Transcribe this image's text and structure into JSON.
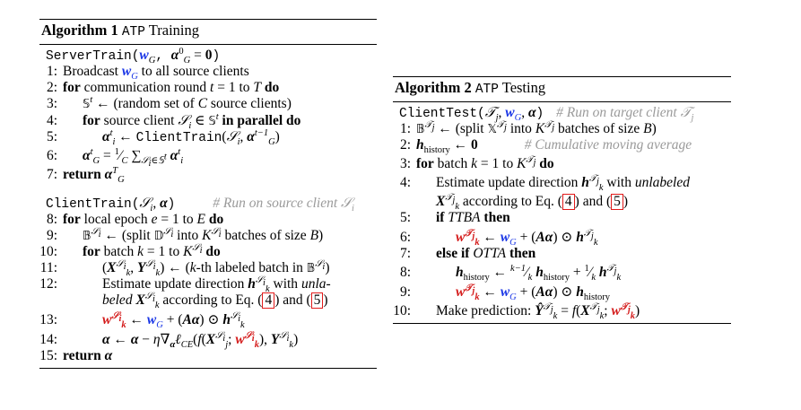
{
  "algo1": {
    "label": "Algorithm 1",
    "name": "ATP",
    "name_suffix": "Training",
    "server_header": "ServerTrain(w_G, α_G^0 = 0)",
    "server_lines": [
      {
        "n": "1:",
        "t": "Broadcast w_G to all source clients"
      },
      {
        "n": "2:",
        "t": "for communication round t = 1 to T do"
      },
      {
        "n": "3:",
        "t": "𝕊^t ← (random set of C source clients)"
      },
      {
        "n": "4:",
        "t": "for source client S_i ∈ 𝕊^t in parallel do"
      },
      {
        "n": "5:",
        "t": "α_i^t ← ClientTrain(S_i, α_G^{t−1})"
      },
      {
        "n": "6:",
        "t": "α_G^t = (1/C) Σ_{S_i∈𝕊^t} α_i^t"
      },
      {
        "n": "7:",
        "t": "return α_G^T"
      }
    ],
    "client_header": "ClientTrain(S_i, α)",
    "client_comment": "# Run on source client S_i",
    "client_lines": [
      {
        "n": "8:",
        "t": "for local epoch e = 1 to E do"
      },
      {
        "n": "9:",
        "t": "𝔹^{S_i} ← (split 𝔻^{S_i} into K^{S_i} batches of size B)"
      },
      {
        "n": "10:",
        "t": "for batch k = 1 to K^{S_i} do"
      },
      {
        "n": "11:",
        "t": "(X_k^{S_i}, Y_k^{S_i}) ← (k-th labeled batch in 𝔹^{S_i})"
      },
      {
        "n": "12:",
        "t": "Estimate update direction h_k^{S_i} with unlabeled X_k^{S_i} according to Eq. (4) and (5)"
      },
      {
        "n": "13:",
        "t": "w_k^{S_i} ← w_G + (Aα) ⊙ h_k^{S_i}"
      },
      {
        "n": "14:",
        "t": "α ← α − η∇_α ℓ_CE(f(X_j^{S_i}; w_k^{S_i}), Y_k^{S_i})"
      },
      {
        "n": "15:",
        "t": "return α"
      }
    ]
  },
  "algo2": {
    "label": "Algorithm 2",
    "name": "ATP",
    "name_suffix": "Testing",
    "header": "ClientTest(T_j, w_G, α)",
    "comment": "# Run on target client T_j",
    "lines": [
      {
        "n": "1:",
        "t": "𝔹^{T_j} ← (split 𝕏^{T_j} into K^{T_j} batches of size B)"
      },
      {
        "n": "2:",
        "t": "h_history ← 0",
        "comment": "# Cumulative moving average"
      },
      {
        "n": "3:",
        "t": "for batch k = 1 to K^{T_j} do"
      },
      {
        "n": "4:",
        "t": "Estimate update direction h_k^{T_j} with unlabeled X_k^{T_j} according to Eq. (4) and (5)"
      },
      {
        "n": "5:",
        "t": "if TTBA then"
      },
      {
        "n": "6:",
        "t": "w_k^{T_j} ← w_G + (Aα) ⊙ h_k^{T_j}"
      },
      {
        "n": "7:",
        "t": "else if OTTA then"
      },
      {
        "n": "8:",
        "t": "h_history ← ((k−1)/k) h_history + (1/k) h_k^{T_j}"
      },
      {
        "n": "9:",
        "t": "w_k^{T_j} ← w_G + (Aα) ⊙ h_history"
      },
      {
        "n": "10:",
        "t": "Make prediction: Ŷ_k^{T_j} = f(X_k^{T_j}; w_k^{T_j})"
      }
    ]
  },
  "colors": {
    "blue": "#1a36e6",
    "red": "#d41c1c",
    "comment": "#9a9a9a",
    "ref_box": "#e21a1a"
  }
}
